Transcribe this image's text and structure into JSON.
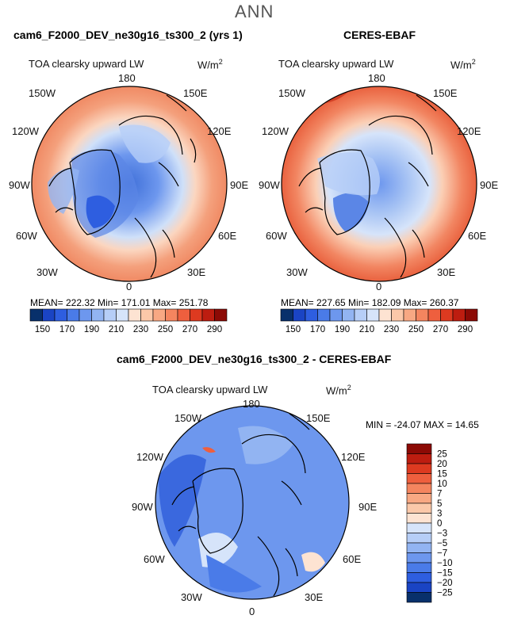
{
  "super_title": "ANN",
  "units": "W/m",
  "units_exp": "2",
  "panels": {
    "left": {
      "title": "cam6_F2000_DEV_ne30g16_ts300_2 (yrs 1)",
      "subtitle": "TOA clearsky upward LW",
      "stats": "MEAN= 222.32    Min= 171.01    Max= 251.78"
    },
    "right": {
      "title": "CERES-EBAF",
      "subtitle": "TOA clearsky upward LW",
      "stats": "MEAN= 227.65    Min= 182.09    Max= 260.37"
    },
    "diff": {
      "title": "cam6_F2000_DEV_ne30g16_ts300_2 - CERES-EBAF",
      "subtitle": "TOA clearsky upward LW",
      "stats": "MIN = -24.07  MAX =  14.65"
    }
  },
  "lon_labels": {
    "top": "180",
    "bottom": "0",
    "left_top": "150W",
    "left_upper": "120W",
    "left_mid": "90W",
    "left_lower": "60W",
    "left_bottom": "30W",
    "right_top": "150E",
    "right_upper": "120E",
    "right_mid": "90E",
    "right_lower": "60E",
    "right_bottom": "30E"
  },
  "colorbar_abs": {
    "labels": [
      "150",
      "170",
      "190",
      "210",
      "230",
      "250",
      "270",
      "290"
    ],
    "colors": [
      "#08306b",
      "#1a44c4",
      "#2e5ee0",
      "#4a7be8",
      "#6d97ee",
      "#92b4f2",
      "#b6cef7",
      "#d6e4fa",
      "#fde3d2",
      "#fbc8a9",
      "#f8a883",
      "#f4855f",
      "#ee5f3e",
      "#dd3a20",
      "#bd1d10",
      "#8c0a05"
    ]
  },
  "colorbar_diff": {
    "labels": [
      "25",
      "20",
      "15",
      "10",
      "7",
      "5",
      "3",
      "0",
      "−3",
      "−5",
      "−7",
      "−10",
      "−15",
      "−20",
      "−25"
    ],
    "colors": [
      "#8c0a05",
      "#bd1d10",
      "#dd3a20",
      "#ee5f3e",
      "#f4855f",
      "#f8a883",
      "#fbc8a9",
      "#fde3d2",
      "#d6e4fa",
      "#b6cef7",
      "#92b4f2",
      "#6d97ee",
      "#4a7be8",
      "#2e5ee0",
      "#1a44c4",
      "#08306b"
    ]
  }
}
